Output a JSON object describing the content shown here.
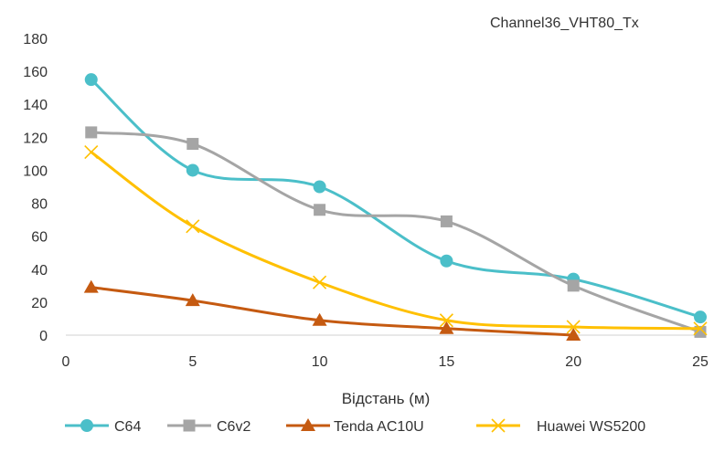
{
  "chart_data": {
    "type": "line",
    "title": "Channel36_VHT80_Tx",
    "xlabel": "Відстань (м)",
    "ylabel": "",
    "xlim": [
      0,
      25
    ],
    "ylim": [
      0,
      180
    ],
    "xticks": [
      0,
      5,
      10,
      15,
      20,
      25
    ],
    "yticks": [
      0,
      20,
      40,
      60,
      80,
      100,
      120,
      140,
      160,
      180
    ],
    "grid": false,
    "smooth": true,
    "legend_position": "bottom",
    "series": [
      {
        "name": "C64",
        "color": "#4bbfc9",
        "marker": "circle",
        "x": [
          1,
          5,
          10,
          15,
          20,
          25
        ],
        "y": [
          155,
          100,
          90,
          45,
          34,
          11
        ]
      },
      {
        "name": "C6v2",
        "color": "#a5a5a5",
        "marker": "square",
        "x": [
          1,
          5,
          10,
          15,
          20,
          25
        ],
        "y": [
          123,
          116,
          76,
          69,
          30,
          2
        ]
      },
      {
        "name": "Tenda AC10U",
        "color": "#c55a11",
        "marker": "triangle",
        "x": [
          1,
          5,
          10,
          15,
          20
        ],
        "y": [
          29,
          21,
          9,
          4,
          0
        ]
      },
      {
        "name": "Huawei WS5200",
        "color": "#ffc000",
        "marker": "x",
        "x": [
          1,
          5,
          10,
          15,
          20,
          25
        ],
        "y": [
          111,
          66,
          32,
          9,
          5,
          4
        ]
      }
    ]
  }
}
